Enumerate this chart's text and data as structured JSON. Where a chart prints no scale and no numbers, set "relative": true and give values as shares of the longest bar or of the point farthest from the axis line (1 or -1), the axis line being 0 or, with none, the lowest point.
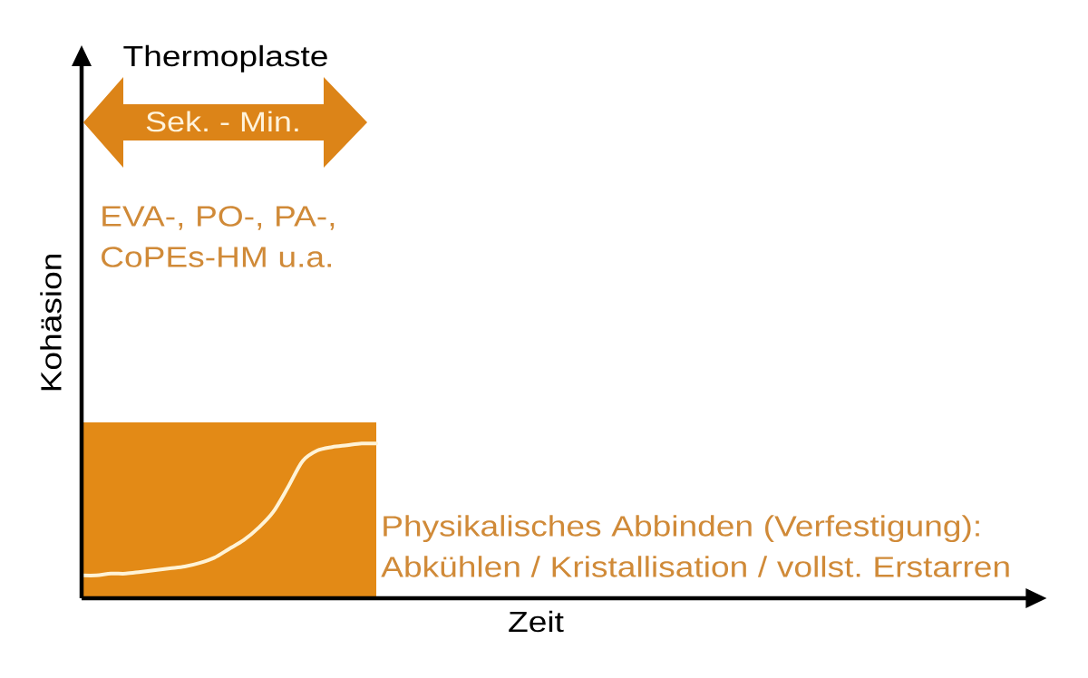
{
  "chart_data": {
    "type": "line",
    "title": "Thermoplaste",
    "xlabel": "Zeit",
    "ylabel": "Kohäsion",
    "relative": true,
    "categories": [
      null,
      null,
      null,
      null,
      null,
      null,
      null,
      null,
      null,
      null,
      null,
      null,
      null,
      null,
      null,
      null,
      null,
      null,
      null,
      null,
      null,
      null,
      null,
      null,
      null,
      null,
      null,
      null,
      null,
      null,
      null,
      null,
      null,
      null,
      null,
      null,
      null,
      null,
      null,
      null,
      null,
      null,
      null,
      null,
      null,
      null,
      null,
      null,
      null,
      null,
      null,
      null,
      null,
      null,
      null,
      null,
      null,
      null,
      null,
      null,
      null,
      null,
      null,
      null,
      null,
      null
    ],
    "series": [
      {
        "type": "area",
        "color": "#e38a16",
        "values": [
          1,
          1,
          1,
          1,
          1,
          1,
          1,
          1,
          1,
          1,
          1,
          1,
          1,
          1,
          1,
          1,
          1,
          1,
          1,
          1,
          1,
          null,
          null,
          null,
          null,
          null,
          null,
          null,
          null,
          null,
          null,
          null,
          null,
          null,
          null,
          null,
          null,
          null,
          null,
          null,
          null,
          null,
          null,
          null,
          null,
          null,
          null,
          null,
          null,
          null,
          null,
          null,
          null,
          null,
          null,
          null,
          null,
          null,
          null,
          null,
          null,
          null,
          null,
          null,
          null,
          null
        ]
      },
      {
        "color": "#fff3d6",
        "values": [
          0.13,
          0.13,
          0.14,
          0.14,
          0.15,
          0.16,
          0.17,
          0.18,
          0.2,
          0.23,
          0.28,
          0.33,
          0.4,
          0.49,
          0.63,
          0.78,
          0.84,
          0.86,
          0.87,
          0.88,
          0.88,
          null,
          null,
          null,
          null,
          null,
          null,
          null,
          null,
          null,
          null,
          null,
          null,
          null,
          null,
          null,
          null,
          null,
          null,
          null,
          null,
          null,
          null,
          null,
          null,
          null,
          null,
          null,
          null,
          null,
          null,
          null,
          null,
          null,
          null,
          null,
          null,
          null,
          null,
          null,
          null,
          null,
          null,
          null,
          null,
          null
        ]
      }
    ],
    "annotations": [
      "Sek. - Min.",
      "EVA-, PO-, PA-, CoPEs-HM u.a.",
      "Physikalisches Abbinden (Verfestigung): Abkühlen / Kristallisation / vollst. Erstarren"
    ]
  }
}
